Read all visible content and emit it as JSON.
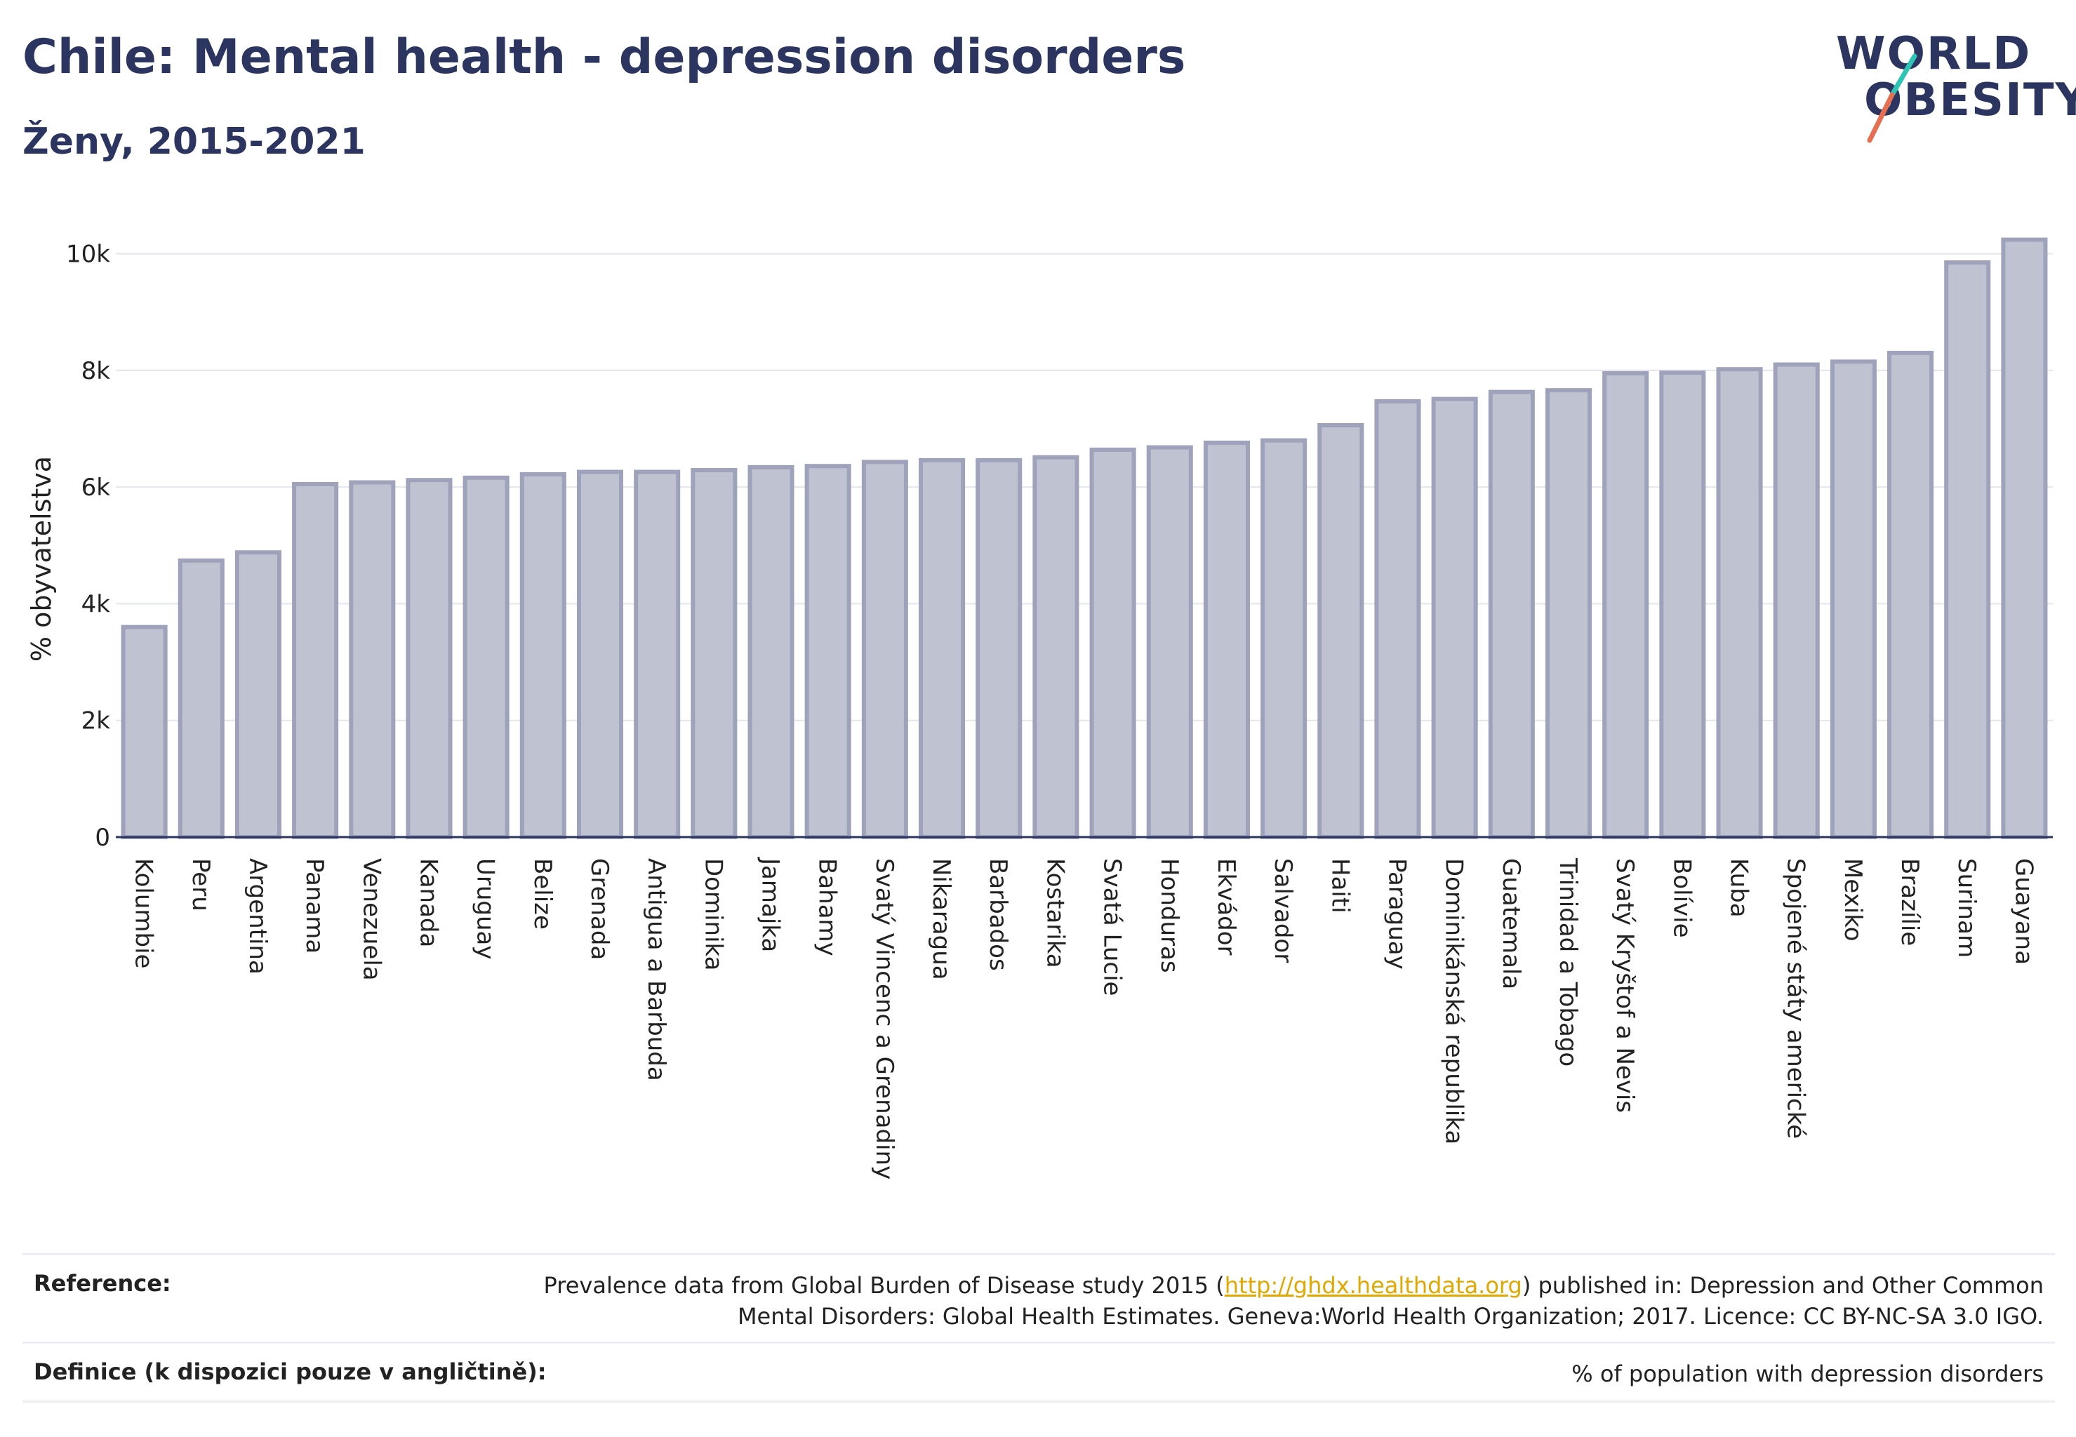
{
  "header": {
    "title": "Chile: Mental health - depression disorders",
    "subtitle": "Ženy, 2015-2021"
  },
  "logo": {
    "line1": "WORLD",
    "line2": "OBESITY",
    "accent_colors": [
      "#2ec4b6",
      "#e76f51"
    ]
  },
  "colors": {
    "bar_fill": "#bfc2d0",
    "bar_stroke": "#9ea3bb",
    "title": "#2b3560",
    "link": "#e0a800"
  },
  "chart_data": {
    "type": "bar",
    "ylabel": "% obyvatelstva",
    "ylim": [
      0,
      10500
    ],
    "yticks": [
      0,
      2000,
      4000,
      6000,
      8000,
      10000
    ],
    "ytick_labels": [
      "0",
      "2k",
      "4k",
      "6k",
      "8k",
      "10k"
    ],
    "grid": true,
    "categories": [
      "Kolumbie",
      "Peru",
      "Argentina",
      "Panama",
      "Venezuela",
      "Kanada",
      "Uruguay",
      "Belize",
      "Grenada",
      "Antigua a Barbuda",
      "Dominika",
      "Jamajka",
      "Bahamy",
      "Svatý Vincenc a Grenadiny",
      "Nikaragua",
      "Barbados",
      "Kostarika",
      "Svatá Lucie",
      "Honduras",
      "Ekvádor",
      "Salvador",
      "Haiti",
      "Paraguay",
      "Dominikánská republika",
      "Guatemala",
      "Trinidad a Tobago",
      "Svatý Kryštof a Nevis",
      "Bolívie",
      "Kuba",
      "Spojené státy americké",
      "Mexiko",
      "Brazílie",
      "Surinam",
      "Guayana"
    ],
    "values": [
      3600,
      4740,
      4880,
      6050,
      6080,
      6120,
      6160,
      6220,
      6260,
      6260,
      6290,
      6340,
      6360,
      6430,
      6460,
      6460,
      6510,
      6640,
      6680,
      6760,
      6800,
      7060,
      7470,
      7510,
      7630,
      7660,
      7950,
      7960,
      8020,
      8100,
      8150,
      8300,
      9850,
      10240
    ]
  },
  "footer": {
    "reference_label": "Reference:",
    "reference_pre": "Prevalence data from Global Burden of Disease study 2015 (",
    "reference_link": "http://ghdx.healthdata.org",
    "reference_post1": ") published in: Depression and Other Common",
    "reference_line2": "Mental Disorders: Global Health Estimates. Geneva:World Health Organization; 2017. Licence: CC BY-NC-SA 3.0 IGO.",
    "definition_label": "Definice (k dispozici pouze v angličtině):",
    "definition_text": "% of population with depression disorders"
  }
}
